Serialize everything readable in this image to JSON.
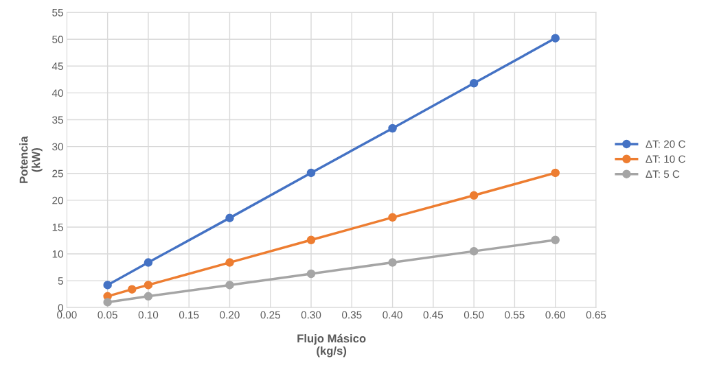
{
  "chart_data": {
    "type": "line",
    "xlabel": "Flujo Másico\n(kg/s)",
    "ylabel": "Potencia\n(kW)",
    "series": [
      {
        "name": "ΔT: 20 C",
        "color": "#4472c4",
        "x": [
          0.05,
          0.1,
          0.2,
          0.3,
          0.4,
          0.5,
          0.6
        ],
        "values": [
          4.2,
          8.4,
          16.7,
          25.1,
          33.4,
          41.8,
          50.2
        ]
      },
      {
        "name": "ΔT: 10 C",
        "color": "#ed7d31",
        "x": [
          0.05,
          0.08,
          0.1,
          0.2,
          0.3,
          0.4,
          0.5,
          0.6
        ],
        "values": [
          2.1,
          3.4,
          4.2,
          8.4,
          12.6,
          16.8,
          20.9,
          25.1
        ]
      },
      {
        "name": "ΔT: 5 C",
        "color": "#a5a5a5",
        "x": [
          0.05,
          0.1,
          0.2,
          0.3,
          0.4,
          0.5,
          0.6
        ],
        "values": [
          1.0,
          2.1,
          4.2,
          6.3,
          8.4,
          10.5,
          12.6
        ]
      }
    ],
    "xlim": [
      0,
      0.65
    ],
    "xticks": [
      {
        "value": 0,
        "label": "0.00"
      },
      {
        "value": 0.05,
        "label": "0.05"
      },
      {
        "value": 0.1,
        "label": "0.10"
      },
      {
        "value": 0.15,
        "label": "0.15"
      },
      {
        "value": 0.2,
        "label": "0.20"
      },
      {
        "value": 0.25,
        "label": "0.25"
      },
      {
        "value": 0.3,
        "label": "0.30"
      },
      {
        "value": 0.35,
        "label": "0.35"
      },
      {
        "value": 0.4,
        "label": "0.40"
      },
      {
        "value": 0.45,
        "label": "0.45"
      },
      {
        "value": 0.5,
        "label": "0.50"
      },
      {
        "value": 0.55,
        "label": "0.55"
      },
      {
        "value": 0.6,
        "label": "0.60"
      },
      {
        "value": 0.65,
        "label": "0.65"
      }
    ],
    "ylim": [
      0,
      55
    ],
    "yticks": [
      0,
      5,
      10,
      15,
      20,
      25,
      30,
      35,
      40,
      45,
      50,
      55
    ],
    "grid": true,
    "legend": "right",
    "marker": "circle",
    "line_style": "solid"
  }
}
